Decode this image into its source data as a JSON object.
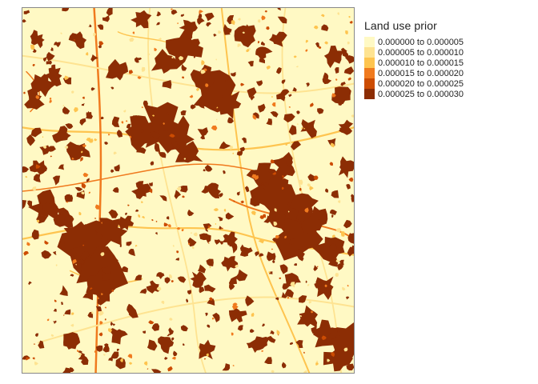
{
  "map": {
    "background_class_color": "#FFF9C4"
  },
  "legend": {
    "title": "Land use prior",
    "items": [
      {
        "label": "0.000000 to 0.000005",
        "color": "#FFF9C4"
      },
      {
        "label": "0.000005 to 0.000010",
        "color": "#FEE391"
      },
      {
        "label": "0.000010 to 0.000015",
        "color": "#FEC44F"
      },
      {
        "label": "0.000015 to 0.000020",
        "color": "#F07A1E"
      },
      {
        "label": "0.000020 to 0.000025",
        "color": "#CC4C02"
      },
      {
        "label": "0.000025 to 0.000030",
        "color": "#8C2D04"
      }
    ]
  }
}
